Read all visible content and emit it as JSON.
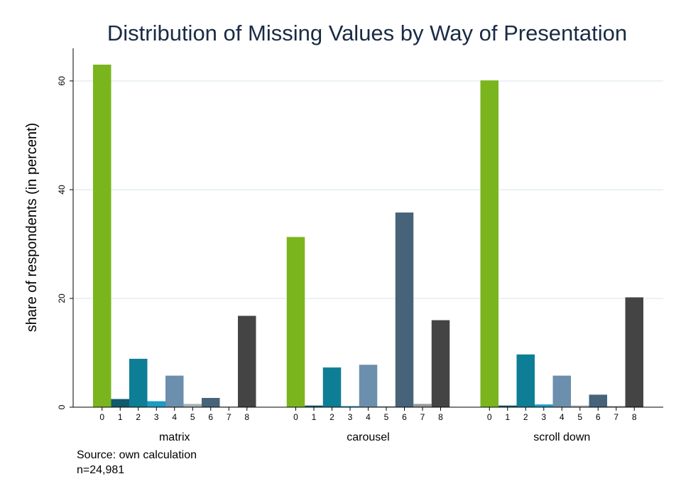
{
  "chart_data": {
    "type": "bar",
    "title": "Distribution of Missing Values by Way of Presentation",
    "ylabel": "share of respondents (in percent)",
    "xlabel": "",
    "ylim": [
      0,
      66
    ],
    "yticks": [
      0,
      20,
      40,
      60
    ],
    "grid": true,
    "legend": "none",
    "categories": [
      "0",
      "1",
      "2",
      "3",
      "4",
      "5",
      "6",
      "7",
      "8"
    ],
    "bar_colors": [
      "#7ab51d",
      "#0f5a6e",
      "#0e7e96",
      "#1a9cc4",
      "#6b8fad",
      "#a9b1b4",
      "#47637a",
      "#9a9a9a",
      "#444444"
    ],
    "groups": [
      {
        "name": "matrix",
        "values": [
          63.0,
          1.5,
          8.9,
          1.1,
          5.8,
          0.6,
          1.7,
          0.1,
          16.8
        ]
      },
      {
        "name": "carousel",
        "values": [
          31.3,
          0.3,
          7.3,
          0.2,
          7.8,
          0.2,
          35.8,
          0.6,
          16.0
        ]
      },
      {
        "name": "scroll down",
        "values": [
          60.1,
          0.3,
          9.7,
          0.5,
          5.8,
          0.3,
          2.3,
          0.2,
          20.2
        ]
      }
    ],
    "notes": [
      "Source: own calculation",
      "n=24,981"
    ]
  }
}
